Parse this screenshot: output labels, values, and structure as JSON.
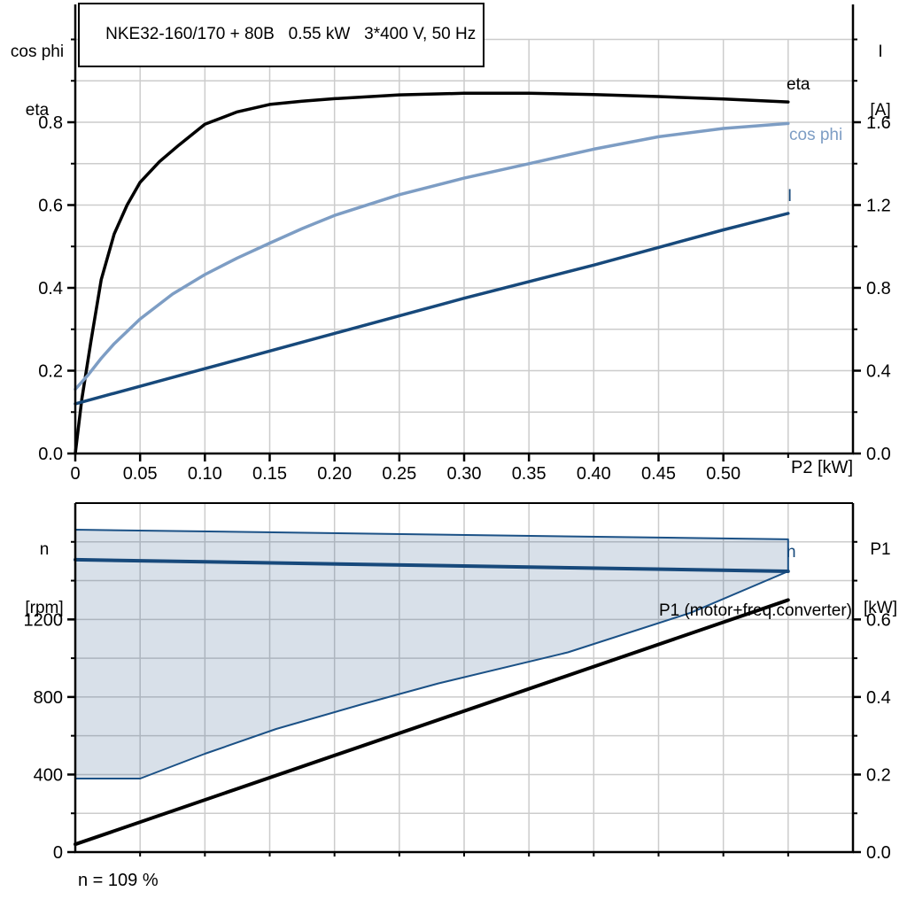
{
  "header": {
    "title": "NKE32-160/170 + 80B   0.55 kW   3*400 V, 50 Hz"
  },
  "labels": {
    "top_left_axis_line1": "cos phi",
    "top_left_axis_line2": "eta",
    "top_right_axis_line1": "I",
    "top_right_axis_line2": "[A]",
    "x_axis_unit": "P2 [kW]",
    "eta_curve": "eta",
    "cos_phi_curve": "cos phi",
    "current_curve": "I",
    "bottom_left_axis_line1": "n",
    "bottom_left_axis_line2": "[rpm]",
    "bottom_right_axis_line1": "P1",
    "bottom_right_axis_line2": "[kW]",
    "n_curve": "n",
    "p1_curve": "P1 (motor+freq.converter)",
    "footnote": "n = 109 %"
  },
  "colors": {
    "eta": "#000000",
    "cos_phi": "#7d9dc4",
    "current": "#17497b",
    "n_line": "#17497b",
    "envelope_stroke": "#1b5186",
    "envelope_fill": "rgba(23,73,124,0.17)",
    "p1": "#000000",
    "grid": "#cccccc",
    "axis": "#000000"
  },
  "chart_data": [
    {
      "type": "line",
      "title": "NKE32-160/170 + 80B  0.55 kW  3*400 V, 50 Hz",
      "xlabel": "P2 [kW]",
      "ylabel_left": "cos phi / eta",
      "ylabel_right": "I [A]",
      "xlim": [
        0,
        0.6
      ],
      "ylim_left": [
        0,
        1.0
      ],
      "ylim_right": [
        0,
        2.0
      ],
      "grid": true,
      "x_ticks": [
        0,
        0.05,
        0.1,
        0.15,
        0.2,
        0.25,
        0.3,
        0.35,
        0.4,
        0.45,
        0.5
      ],
      "x_tick_labels": [
        "0",
        "0.05",
        "0.10",
        "0.15",
        "0.20",
        "0.25",
        "0.30",
        "0.35",
        "0.40",
        "0.45",
        "0.50"
      ],
      "x_minor_ticks": [
        0.55
      ],
      "x_grid": [
        0.05,
        0.1,
        0.15,
        0.2,
        0.25,
        0.3,
        0.35,
        0.4,
        0.45,
        0.5,
        0.55
      ],
      "y_left_ticks": [
        0,
        0.2,
        0.4,
        0.6,
        0.8
      ],
      "y_left_tick_labels": [
        "0.0",
        "0.2",
        "0.4",
        "0.6",
        "0.8"
      ],
      "y_left_minor_ticks": [
        0.1,
        0.3,
        0.5,
        0.7,
        0.9,
        1.0
      ],
      "y_grid_left": [
        0.1,
        0.2,
        0.3,
        0.4,
        0.5,
        0.6,
        0.7,
        0.8,
        0.9,
        1.0
      ],
      "y_right_ticks": [
        0.0,
        0.4,
        0.8,
        1.2,
        1.6
      ],
      "y_right_tick_labels": [
        "0.0",
        "0.4",
        "0.8",
        "1.2",
        "1.6"
      ],
      "y_right_minor_ticks": [
        0.2,
        0.6,
        1.0,
        1.4,
        1.8,
        2.0
      ],
      "series": [
        {
          "name": "eta",
          "axis": "left",
          "color_key": "eta",
          "width": 3.5,
          "points": [
            [
              0,
              0
            ],
            [
              0.005,
              0.13
            ],
            [
              0.012,
              0.27
            ],
            [
              0.02,
              0.42
            ],
            [
              0.03,
              0.53
            ],
            [
              0.04,
              0.6
            ],
            [
              0.05,
              0.655
            ],
            [
              0.065,
              0.705
            ],
            [
              0.08,
              0.745
            ],
            [
              0.1,
              0.795
            ],
            [
              0.125,
              0.825
            ],
            [
              0.15,
              0.843
            ],
            [
              0.175,
              0.851
            ],
            [
              0.2,
              0.857
            ],
            [
              0.25,
              0.866
            ],
            [
              0.3,
              0.87
            ],
            [
              0.35,
              0.87
            ],
            [
              0.4,
              0.867
            ],
            [
              0.45,
              0.862
            ],
            [
              0.5,
              0.856
            ],
            [
              0.55,
              0.849
            ]
          ]
        },
        {
          "name": "cos phi",
          "axis": "left",
          "color_key": "cos_phi",
          "width": 3.5,
          "points": [
            [
              0,
              0.155
            ],
            [
              0.01,
              0.19
            ],
            [
              0.02,
              0.23
            ],
            [
              0.03,
              0.265
            ],
            [
              0.05,
              0.325
            ],
            [
              0.075,
              0.385
            ],
            [
              0.1,
              0.432
            ],
            [
              0.125,
              0.472
            ],
            [
              0.15,
              0.508
            ],
            [
              0.175,
              0.543
            ],
            [
              0.2,
              0.575
            ],
            [
              0.25,
              0.625
            ],
            [
              0.3,
              0.665
            ],
            [
              0.35,
              0.7
            ],
            [
              0.4,
              0.735
            ],
            [
              0.45,
              0.765
            ],
            [
              0.5,
              0.785
            ],
            [
              0.55,
              0.797
            ]
          ]
        },
        {
          "name": "I",
          "axis": "right",
          "color_key": "current",
          "width": 3.5,
          "points": [
            [
              0,
              0.24
            ],
            [
              0.1,
              0.41
            ],
            [
              0.2,
              0.58
            ],
            [
              0.3,
              0.75
            ],
            [
              0.4,
              0.91
            ],
            [
              0.5,
              1.08
            ],
            [
              0.55,
              1.16
            ]
          ]
        }
      ]
    },
    {
      "type": "line+area",
      "xlabel": "P2 [kW]",
      "ylabel_left": "n [rpm]",
      "ylabel_right": "P1 [kW]",
      "xlim": [
        0,
        0.6
      ],
      "ylim_left": [
        0,
        1800
      ],
      "ylim_right": [
        0,
        0.9
      ],
      "grid": true,
      "annotation": "n = 109 %",
      "x_minor_ticks": [
        0.05,
        0.1,
        0.15,
        0.2,
        0.25,
        0.3,
        0.35,
        0.4,
        0.45,
        0.5,
        0.55
      ],
      "x_grid": [
        0.05,
        0.1,
        0.15,
        0.2,
        0.25,
        0.3,
        0.35,
        0.4,
        0.45,
        0.5,
        0.55
      ],
      "y_left_ticks": [
        0,
        400,
        800,
        1200
      ],
      "y_left_tick_labels": [
        "0",
        "400",
        "800",
        "1200"
      ],
      "y_left_minor_ticks": [
        200,
        600,
        1000,
        1400,
        1600
      ],
      "y_grid_left": [
        200,
        400,
        600,
        800,
        1000,
        1200,
        1400,
        1600
      ],
      "y_right_ticks": [
        0.0,
        0.2,
        0.4,
        0.6
      ],
      "y_right_tick_labels": [
        "0.0",
        "0.2",
        "0.4",
        "0.6"
      ],
      "y_right_minor_ticks": [
        0.1,
        0.3,
        0.5,
        0.7,
        0.8
      ],
      "series": [
        {
          "name": "speed range envelope",
          "type": "area",
          "axis": "left",
          "points_top": [
            [
              0,
              1663
            ],
            [
              0.55,
              1613
            ]
          ],
          "points_bottom": [
            [
              0,
              379
            ],
            [
              0.05,
              379
            ],
            [
              0.1,
              507
            ],
            [
              0.155,
              635
            ],
            [
              0.22,
              760
            ],
            [
              0.28,
              870
            ],
            [
              0.38,
              1030
            ],
            [
              0.475,
              1235
            ],
            [
              0.55,
              1448
            ]
          ]
        },
        {
          "name": "n",
          "axis": "left",
          "color_key": "n_line",
          "width": 4,
          "points": [
            [
              0,
              1508
            ],
            [
              0.55,
              1448
            ]
          ]
        },
        {
          "name": "P1 (motor+freq.converter)",
          "axis": "right",
          "color_key": "p1",
          "width": 4,
          "points": [
            [
              0,
              0.02
            ],
            [
              0.55,
              0.65
            ]
          ]
        }
      ]
    }
  ]
}
